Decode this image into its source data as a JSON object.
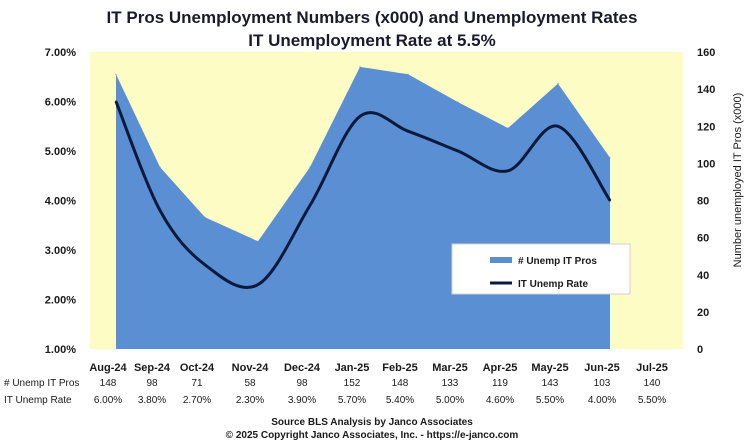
{
  "title_line1": "IT Pros Unemployment Numbers (x000) and Unemployment Rates",
  "title_line2": "IT Unemployment Rate at 5.5%",
  "footer_line1": "Source BLS Analysis by Janco Associates",
  "footer_line2": "© 2025 Copyright Janco Associates, Inc. - https://e-janco.com",
  "colors": {
    "plot_bg": "#fcfcc4",
    "area": "#5b8fd4",
    "line": "#0a1a3a"
  },
  "chart_data": {
    "type": "area",
    "categories": [
      "Aug-24",
      "Sep-24",
      "Oct-24",
      "Nov-24",
      "Dec-24",
      "Jan-25",
      "Feb-25",
      "Mar-25",
      "Apr-25",
      "May-25",
      "Jun-25",
      "Jul-25"
    ],
    "series": [
      {
        "name": "# Unemp IT Pros",
        "type": "area",
        "axis": "right",
        "values": [
          148,
          98,
          71,
          58,
          98,
          152,
          148,
          133,
          119,
          143,
          103,
          140
        ],
        "labels": [
          "148",
          "98",
          "71",
          "58",
          "98",
          "152",
          "148",
          "133",
          "119",
          "143",
          "103",
          "140"
        ]
      },
      {
        "name": "IT Unemp Rate",
        "type": "line",
        "axis": "left",
        "values": [
          6.0,
          3.8,
          2.7,
          2.3,
          3.9,
          5.7,
          5.4,
          5.0,
          4.6,
          5.5,
          4.0,
          5.5
        ],
        "labels": [
          "6.00%",
          "3.80%",
          "2.70%",
          "2.30%",
          "3.90%",
          "5.70%",
          "5.40%",
          "5.00%",
          "4.60%",
          "5.50%",
          "4.00%",
          "5.50%"
        ]
      }
    ],
    "y_left": {
      "min": 1.0,
      "max": 7.0,
      "ticks": [
        "7.00%",
        "6.00%",
        "5.00%",
        "4.00%",
        "3.00%",
        "2.00%",
        "1.00%"
      ]
    },
    "y_right": {
      "min": 0,
      "max": 160,
      "ticks": [
        "160",
        "140",
        "120",
        "100",
        "80",
        "60",
        "40",
        "20",
        "0"
      ],
      "label": "Number unemployed IT Pros (x000)"
    },
    "legend": {
      "placement": "center-right",
      "entries": [
        "# Unemp IT Pros",
        "IT Unemp Rate"
      ]
    },
    "table_row_labels": [
      "# Unemp IT Pros",
      "IT Unemp Rate"
    ]
  }
}
